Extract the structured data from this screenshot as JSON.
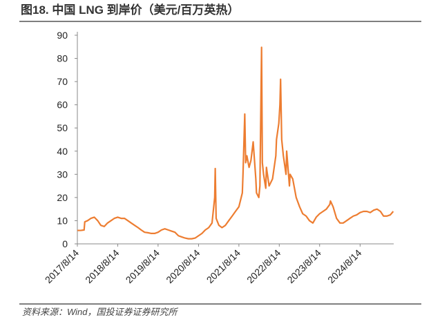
{
  "chart_data": {
    "type": "line",
    "title": "图18. 中国 LNG 到岸价（美元/百万英热）",
    "source": "资料来源：Wind，国投证券证券研究所",
    "x": [
      "2017/8/14",
      "2017/9/14",
      "2017/10/14",
      "2017/10/20",
      "2017/11/14",
      "2017/12/14",
      "2018/1/14",
      "2018/2/14",
      "2018/3/14",
      "2018/4/14",
      "2018/5/14",
      "2018/6/14",
      "2018/7/14",
      "2018/8/14",
      "2018/9/14",
      "2018/10/14",
      "2018/11/14",
      "2018/12/14",
      "2019/1/14",
      "2019/2/14",
      "2019/3/14",
      "2019/4/14",
      "2019/5/14",
      "2019/6/14",
      "2019/7/14",
      "2019/8/14",
      "2019/9/14",
      "2019/10/14",
      "2019/11/14",
      "2019/12/14",
      "2020/1/14",
      "2020/2/14",
      "2020/3/14",
      "2020/4/14",
      "2020/5/14",
      "2020/6/14",
      "2020/7/14",
      "2020/8/14",
      "2020/9/14",
      "2020/10/14",
      "2020/11/14",
      "2020/12/14",
      "2021/1/7",
      "2021/1/12",
      "2021/1/20",
      "2021/2/14",
      "2021/3/14",
      "2021/4/14",
      "2021/5/14",
      "2021/6/14",
      "2021/7/14",
      "2021/8/14",
      "2021/9/14",
      "2021/9/20",
      "2021/10/6",
      "2021/10/14",
      "2021/10/25",
      "2021/11/14",
      "2021/12/1",
      "2021/12/21",
      "2022/1/14",
      "2022/1/20",
      "2022/2/10",
      "2022/2/20",
      "2022/3/7",
      "2022/3/14",
      "2022/3/25",
      "2022/4/14",
      "2022/4/20",
      "2022/5/14",
      "2022/6/14",
      "2022/7/14",
      "2022/7/20",
      "2022/8/10",
      "2022/8/20",
      "2022/8/26",
      "2022/9/5",
      "2022/9/20",
      "2022/10/14",
      "2022/10/20",
      "2022/11/14",
      "2022/11/20",
      "2022/12/14",
      "2023/1/14",
      "2023/2/14",
      "2023/3/14",
      "2023/4/14",
      "2023/5/14",
      "2023/6/14",
      "2023/7/14",
      "2023/8/14",
      "2023/9/14",
      "2023/10/14",
      "2023/11/14",
      "2023/11/20",
      "2023/12/14",
      "2024/1/14",
      "2024/2/14",
      "2024/3/14",
      "2024/4/14",
      "2024/5/14",
      "2024/6/14",
      "2024/7/14",
      "2024/8/14",
      "2024/9/14",
      "2024/10/14",
      "2024/11/14",
      "2024/12/14",
      "2025/1/14",
      "2025/2/14",
      "2025/3/14",
      "2025/4/14",
      "2025/5/14",
      "2025/6/10"
    ],
    "series": [
      {
        "name": "中国 LNG 到岸价",
        "color": "#ed7d31",
        "values": [
          5.8,
          5.8,
          6,
          9.5,
          10,
          11,
          11.5,
          10,
          8,
          7.5,
          9,
          10,
          11,
          11.5,
          11,
          11,
          10,
          9,
          8,
          7,
          6,
          5,
          4.8,
          4.5,
          4.5,
          5,
          6,
          6.5,
          6,
          5.5,
          5,
          3.5,
          3,
          2.5,
          2.2,
          2.2,
          2.5,
          3.5,
          4.5,
          6,
          7,
          9,
          20,
          32.5,
          11,
          8,
          7,
          8,
          10,
          12,
          14,
          16,
          22,
          30,
          56,
          35,
          38,
          33,
          36,
          44,
          28,
          22,
          20,
          25,
          84.8,
          35,
          30,
          24,
          33,
          25,
          28,
          38,
          45,
          52,
          60,
          71,
          45,
          38,
          30,
          40,
          25,
          30,
          28,
          20,
          16,
          13,
          12,
          10,
          9,
          11.5,
          13,
          14,
          15,
          17,
          18.5,
          16,
          11,
          9,
          9,
          10,
          11,
          12,
          12.5,
          13.5,
          14,
          14,
          13.5,
          14.5,
          15,
          14,
          12,
          12,
          12.5,
          14
        ]
      }
    ],
    "xlim": [
      "2017/8/14",
      "2025/6/14"
    ],
    "xticks": [
      "2017/8/14",
      "2018/8/14",
      "2019/8/14",
      "2020/8/14",
      "2021/8/14",
      "2022/8/14",
      "2023/8/14",
      "2024/8/14"
    ],
    "ylim": [
      0,
      90
    ],
    "yticks": [
      0,
      10,
      20,
      30,
      40,
      50,
      60,
      70,
      80,
      90
    ],
    "grid": false
  }
}
